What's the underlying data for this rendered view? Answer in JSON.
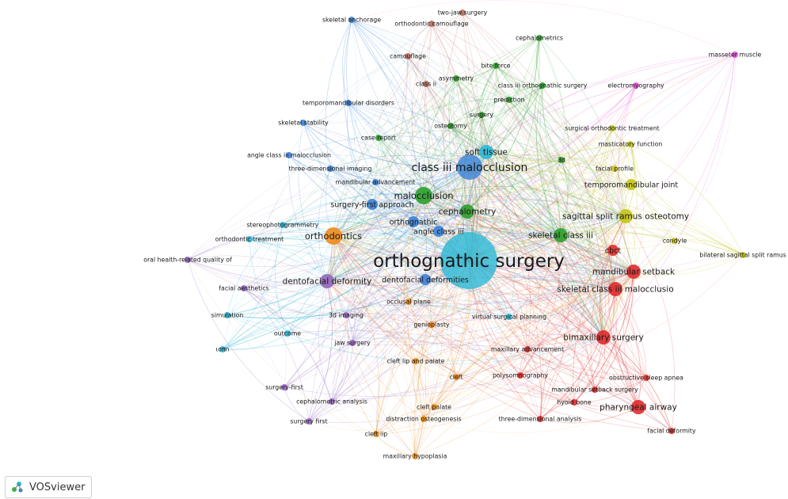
{
  "app": {
    "brand": "VOSviewer"
  },
  "clusters": {
    "red": "#e02b2b",
    "green": "#2ca02c",
    "blue": "#3b82d6",
    "yellow": "#c5c516",
    "purple": "#9467bd",
    "cyan": "#2bb8d6",
    "orange": "#f08c1a",
    "brown": "#b56b5e",
    "pink": "#e54fd6"
  },
  "nodes": [
    {
      "label": "orthognathic surgery",
      "c": "cyan",
      "w": 50
    },
    {
      "label": "class iii malocclusion",
      "c": "blue",
      "w": 26
    },
    {
      "label": "malocclusion",
      "c": "green",
      "w": 18
    },
    {
      "label": "orthodontics",
      "c": "orange",
      "w": 15
    },
    {
      "label": "dentofacial deformity",
      "c": "purple",
      "w": 14
    },
    {
      "label": "sagittal split ramus osteotomy",
      "c": "yellow",
      "w": 14
    },
    {
      "label": "skeletal class iii",
      "c": "green",
      "w": 14
    },
    {
      "label": "skeletal class iii malocclusio",
      "c": "red",
      "w": 14
    },
    {
      "label": "mandibular setback",
      "c": "red",
      "w": 13
    },
    {
      "label": "bimaxillary surgery",
      "c": "red",
      "w": 13
    },
    {
      "label": "pharyngeal airway",
      "c": "red",
      "w": 12
    },
    {
      "label": "soft tissue",
      "c": "cyan",
      "w": 12
    },
    {
      "label": "cephalometry",
      "c": "green",
      "w": 12
    },
    {
      "label": "angle class iii",
      "c": "blue",
      "w": 11
    },
    {
      "label": "orthognathic",
      "c": "blue",
      "w": 10
    },
    {
      "label": "dentofacial deformities",
      "c": "blue",
      "w": 11
    },
    {
      "label": "surgery-first approach",
      "c": "blue",
      "w": 10
    },
    {
      "label": "cbct",
      "c": "red",
      "w": 10
    },
    {
      "label": "temporomandibular joint",
      "c": "yellow",
      "w": 10
    },
    {
      "label": "osteotomy",
      "c": "green",
      "w": 9
    },
    {
      "label": "surgery",
      "c": "green",
      "w": 9
    },
    {
      "label": "3d",
      "c": "green",
      "w": 9
    },
    {
      "label": "mandibular advancement",
      "c": "blue",
      "w": 9
    },
    {
      "label": "three-dimensional imaging",
      "c": "blue",
      "w": 9
    },
    {
      "label": "angle class iii malocclusion",
      "c": "blue",
      "w": 9
    },
    {
      "label": "case report",
      "c": "green",
      "w": 9
    },
    {
      "label": "skeletal stability",
      "c": "blue",
      "w": 9
    },
    {
      "label": "temporomandibular disorders",
      "c": "blue",
      "w": 9
    },
    {
      "label": "class ii",
      "c": "brown",
      "w": 9
    },
    {
      "label": "asymmetry",
      "c": "green",
      "w": 9
    },
    {
      "label": "class iii orthognathic surgery",
      "c": "green",
      "w": 9
    },
    {
      "label": "prediction",
      "c": "green",
      "w": 9
    },
    {
      "label": "bite force",
      "c": "green",
      "w": 9
    },
    {
      "label": "camouflage",
      "c": "brown",
      "w": 9
    },
    {
      "label": "cephalometrics",
      "c": "green",
      "w": 9
    },
    {
      "label": "two-jaw surgery",
      "c": "brown",
      "w": 9
    },
    {
      "label": "orthodontic camouflage",
      "c": "brown",
      "w": 9
    },
    {
      "label": "skeletal anchorage",
      "c": "blue",
      "w": 9
    },
    {
      "label": "masseter muscle",
      "c": "pink",
      "w": 9
    },
    {
      "label": "electromyography",
      "c": "pink",
      "w": 9
    },
    {
      "label": "surgical orthodontic treatment",
      "c": "yellow",
      "w": 9
    },
    {
      "label": "masticatory function",
      "c": "yellow",
      "w": 9
    },
    {
      "label": "facial profile",
      "c": "yellow",
      "w": 9
    },
    {
      "label": "condyle",
      "c": "yellow",
      "w": 9
    },
    {
      "label": "bilateral sagittal split ramus",
      "c": "yellow",
      "w": 9
    },
    {
      "label": "stereophotogrammetry",
      "c": "cyan",
      "w": 9
    },
    {
      "label": "orthodontic treatment",
      "c": "cyan",
      "w": 9
    },
    {
      "label": "oral health-related quality of",
      "c": "purple",
      "w": 9
    },
    {
      "label": "facial aesthetics",
      "c": "purple",
      "w": 9
    },
    {
      "label": "simulation",
      "c": "cyan",
      "w": 9
    },
    {
      "label": "outcome",
      "c": "cyan",
      "w": 9
    },
    {
      "label": "ιοπn",
      "c": "cyan",
      "w": 9
    },
    {
      "label": "occlusal plane",
      "c": "orange",
      "w": 9
    },
    {
      "label": "3d imaging",
      "c": "purple",
      "w": 9
    },
    {
      "label": "jaw surgery",
      "c": "purple",
      "w": 9
    },
    {
      "label": "genioplasty",
      "c": "orange",
      "w": 9
    },
    {
      "label": "virtual surgical planning",
      "c": "cyan",
      "w": 9
    },
    {
      "label": "maxillary advancement",
      "c": "red",
      "w": 9
    },
    {
      "label": "cleft lip and palate",
      "c": "orange",
      "w": 9
    },
    {
      "label": "cleft",
      "c": "orange",
      "w": 9
    },
    {
      "label": "polysomnography",
      "c": "red",
      "w": 9
    },
    {
      "label": "obstructive sleep apnea",
      "c": "red",
      "w": 9
    },
    {
      "label": "mandibular setback surgery",
      "c": "red",
      "w": 9
    },
    {
      "label": "hyoid bone",
      "c": "red",
      "w": 9
    },
    {
      "label": "surgery-first",
      "c": "purple",
      "w": 9
    },
    {
      "label": "cephalometric analysis",
      "c": "purple",
      "w": 9
    },
    {
      "label": "cleft palate",
      "c": "orange",
      "w": 9
    },
    {
      "label": "distraction osteogenesis",
      "c": "orange",
      "w": 9
    },
    {
      "label": "three-dimensional analysis",
      "c": "red",
      "w": 9
    },
    {
      "label": "surgery first",
      "c": "purple",
      "w": 9
    },
    {
      "label": "cleft lip",
      "c": "orange",
      "w": 9
    },
    {
      "label": "maxillary hypoplasia",
      "c": "orange",
      "w": 9
    },
    {
      "label": "facial deformity",
      "c": "red",
      "w": 9
    }
  ]
}
